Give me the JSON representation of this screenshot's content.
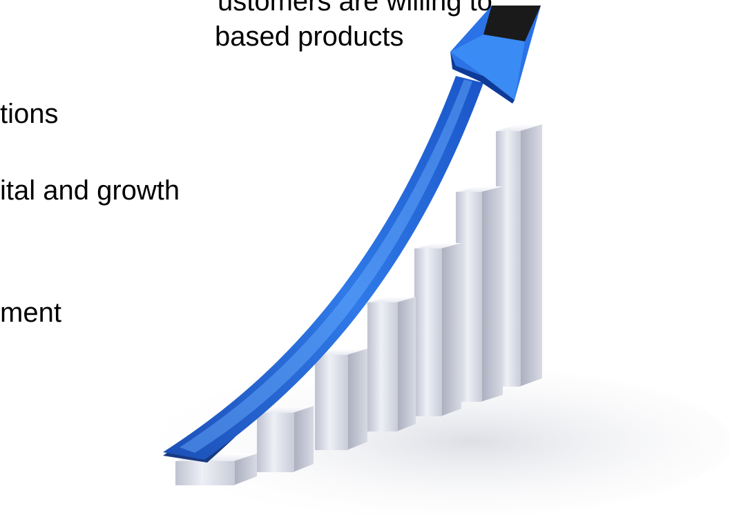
{
  "slide": {
    "lines": [
      "ustomers are willing to",
      "based products",
      "tions",
      "ital and growth",
      "ment"
    ]
  },
  "illustration": {
    "name": "growth-chart-with-rising-arrow-icon",
    "bar_count": 7,
    "arrow_color": "#1f5fd6",
    "bar_color": "#d9dbe6"
  }
}
